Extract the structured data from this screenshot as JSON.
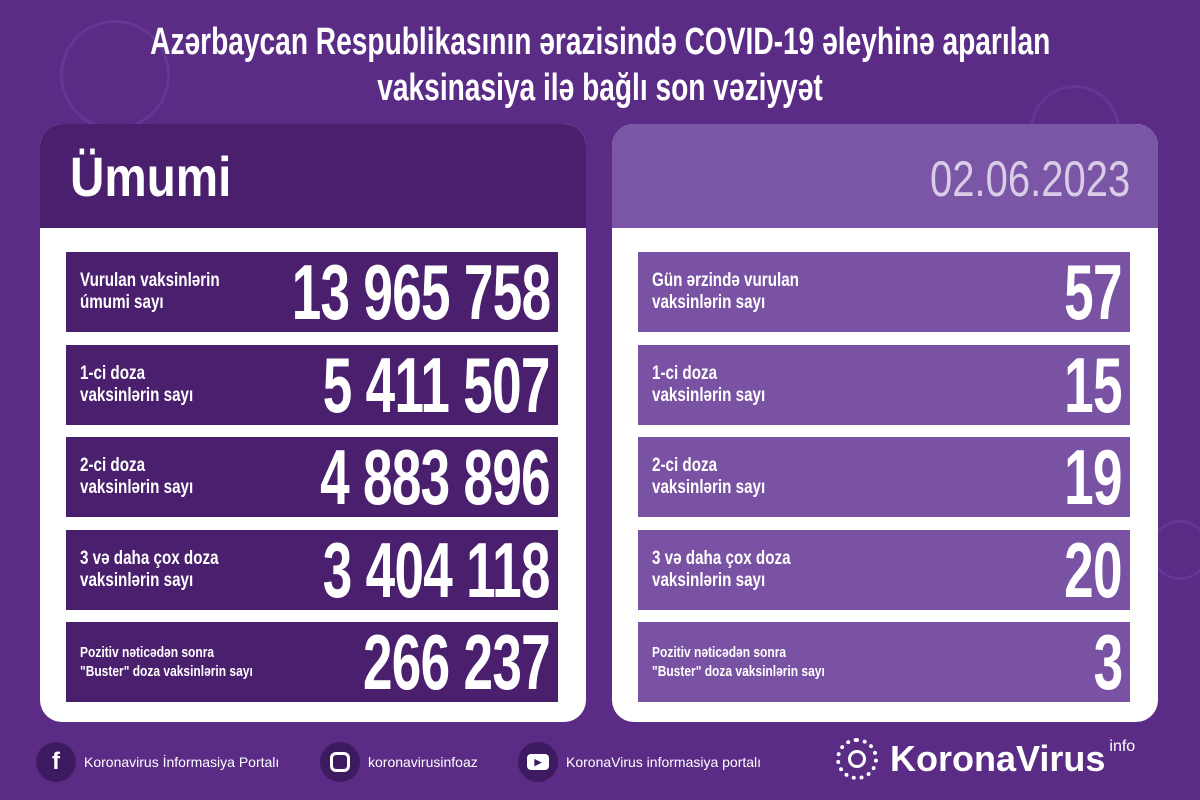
{
  "title": {
    "line1": "Azərbaycan Respublikasının ərazisində COVID-19 əleyhinə aparılan",
    "line2": "vaksinasiya ilə bağlı son vəziyyət"
  },
  "colors": {
    "background": "#5a2c85",
    "left_rows": "#4a1f6e",
    "right_rows": "#7a52a3",
    "right_header": "#7c56a6",
    "date_text": "#d8cce6"
  },
  "left": {
    "header": "Ümumi",
    "rows": [
      {
        "label": "Vurulan vaksinlərin\númumi sayı",
        "value": "13 965 758"
      },
      {
        "label": "1-ci doza\nvaksinlərin sayı",
        "value": "5 411 507"
      },
      {
        "label": "2-ci doza\nvaksinlərin sayı",
        "value": "4 883 896"
      },
      {
        "label": "3 və daha çox doza\nvaksinlərin sayı",
        "value": "3 404 118"
      },
      {
        "label": "Pozitiv nəticədən sonra\n\"Buster\" doza vaksinlərin sayı",
        "value": "266 237"
      }
    ]
  },
  "right": {
    "header": "02.06.2023",
    "rows": [
      {
        "label": "Gün ərzində vurulan\nvaksinlərin sayı",
        "value": "57"
      },
      {
        "label": "1-ci doza\nvaksinlərin sayı",
        "value": "15"
      },
      {
        "label": "2-ci doza\nvaksinlərin sayı",
        "value": "19"
      },
      {
        "label": "3 və daha çox doza\nvaksinlərin sayı",
        "value": "20"
      },
      {
        "label": "Pozitiv nəticədən sonra\n\"Buster\" doza vaksinlərin sayı",
        "value": "3"
      }
    ]
  },
  "footer": {
    "facebook": "Koronavirus İnformasiya Portalı",
    "instagram": "koronavirusinfoaz",
    "youtube": "KoronaVirus informasiya portalı",
    "logo": "KoronaVirus",
    "logo_sup": "info"
  }
}
